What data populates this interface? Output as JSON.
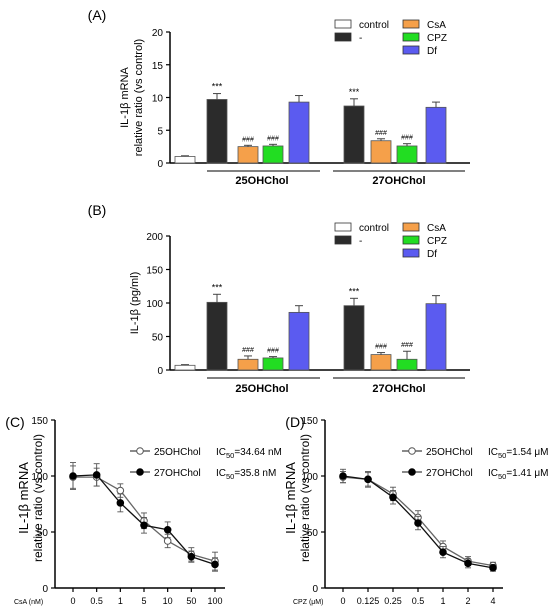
{
  "chart_data": [
    {
      "panel": "(A)",
      "type": "bar",
      "ylabel": "IL-1β mRNA relative ratio (vs control)",
      "ylim": [
        0,
        20
      ],
      "yticks": [
        "0",
        "5",
        "10",
        "15",
        "20"
      ],
      "groups": [
        "25OHChol",
        "27OHChol"
      ],
      "legend": [
        "control",
        "-",
        "CsA",
        "CPZ",
        "Df"
      ],
      "colors": {
        "control": "#ffffff",
        "-": "#2b2b2b",
        "CsA": "#f5a04a",
        "CPZ": "#22dd22",
        "Df": "#5b5bf0"
      },
      "bars": [
        {
          "series": "control",
          "group": "",
          "value": 1.0,
          "err": 0.1,
          "label": ""
        },
        {
          "series": "-",
          "group": "25OHChol",
          "value": 9.7,
          "err": 0.9,
          "label": "***"
        },
        {
          "series": "CsA",
          "group": "25OHChol",
          "value": 2.5,
          "err": 0.2,
          "label": "###"
        },
        {
          "series": "CPZ",
          "group": "25OHChol",
          "value": 2.6,
          "err": 0.25,
          "label": "###"
        },
        {
          "series": "Df",
          "group": "25OHChol",
          "value": 9.3,
          "err": 1.0,
          "label": ""
        },
        {
          "series": "-",
          "group": "27OHChol",
          "value": 8.7,
          "err": 1.1,
          "label": "***"
        },
        {
          "series": "CsA",
          "group": "27OHChol",
          "value": 3.4,
          "err": 0.3,
          "label": "###"
        },
        {
          "series": "CPZ",
          "group": "27OHChol",
          "value": 2.6,
          "err": 0.35,
          "label": "###"
        },
        {
          "series": "Df",
          "group": "27OHChol",
          "value": 8.5,
          "err": 0.8,
          "label": ""
        }
      ]
    },
    {
      "panel": "(B)",
      "type": "bar",
      "ylabel": "IL-1β (pg/ml)",
      "ylim": [
        0,
        200
      ],
      "yticks": [
        "0",
        "50",
        "100",
        "150",
        "200"
      ],
      "groups": [
        "25OHChol",
        "27OHChol"
      ],
      "legend": [
        "control",
        "-",
        "CsA",
        "CPZ",
        "Df"
      ],
      "colors": {
        "control": "#ffffff",
        "-": "#2b2b2b",
        "CsA": "#f5a04a",
        "CPZ": "#22dd22",
        "Df": "#5b5bf0"
      },
      "bars": [
        {
          "series": "control",
          "group": "",
          "value": 7,
          "err": 1,
          "label": ""
        },
        {
          "series": "-",
          "group": "25OHChol",
          "value": 101,
          "err": 12,
          "label": "***"
        },
        {
          "series": "CsA",
          "group": "25OHChol",
          "value": 16,
          "err": 5,
          "label": "###"
        },
        {
          "series": "CPZ",
          "group": "25OHChol",
          "value": 18,
          "err": 2,
          "label": "###"
        },
        {
          "series": "Df",
          "group": "25OHChol",
          "value": 86,
          "err": 10,
          "label": ""
        },
        {
          "series": "-",
          "group": "27OHChol",
          "value": 96,
          "err": 11,
          "label": "***"
        },
        {
          "series": "CsA",
          "group": "27OHChol",
          "value": 23,
          "err": 3,
          "label": "###"
        },
        {
          "series": "CPZ",
          "group": "27OHChol",
          "value": 16,
          "err": 12,
          "label": "###"
        },
        {
          "series": "Df",
          "group": "27OHChol",
          "value": 99,
          "err": 12,
          "label": ""
        }
      ]
    },
    {
      "panel": "(C)",
      "type": "line",
      "ylabel": "IL-1β mRNA relative ratio (vs control)",
      "xlabel": "CsA (nM)",
      "ylim": [
        0,
        150
      ],
      "yticks": [
        "0",
        "50",
        "100",
        "150"
      ],
      "x": [
        "0",
        "0.5",
        "1",
        "5",
        "10",
        "50",
        "100"
      ],
      "series": [
        {
          "name": "25OHChol",
          "ic50": "IC50=34.64 nM",
          "marker": "open",
          "values": [
            99,
            99,
            87,
            60,
            42,
            30,
            24
          ],
          "errors": [
            10,
            8,
            6,
            7,
            6,
            6,
            8
          ]
        },
        {
          "name": "27OHChol",
          "ic50": "IC50=35.8 nM",
          "marker": "filled",
          "values": [
            100,
            101,
            76,
            56,
            52,
            28,
            21
          ],
          "errors": [
            12,
            10,
            8,
            7,
            7,
            5,
            6
          ]
        }
      ]
    },
    {
      "panel": "(D)",
      "type": "line",
      "ylabel": "IL-1β mRNA relative ratio (vs control)",
      "xlabel": "CPZ (μM)",
      "ylim": [
        0,
        150
      ],
      "yticks": [
        "0",
        "50",
        "100",
        "150"
      ],
      "x": [
        "0",
        "0.125",
        "0.25",
        "0.5",
        "1",
        "2",
        "4"
      ],
      "series": [
        {
          "name": "25OHChol",
          "ic50": "IC50=1.54 μM",
          "marker": "open",
          "values": [
            99,
            97,
            84,
            63,
            37,
            24,
            20
          ],
          "errors": [
            5,
            6,
            6,
            6,
            5,
            4,
            3
          ]
        },
        {
          "name": "27OHChol",
          "ic50": "IC50=1.41 μM",
          "marker": "filled",
          "values": [
            100,
            97,
            81,
            58,
            32,
            22,
            18
          ],
          "errors": [
            6,
            7,
            6,
            6,
            5,
            4,
            3
          ]
        }
      ]
    }
  ]
}
